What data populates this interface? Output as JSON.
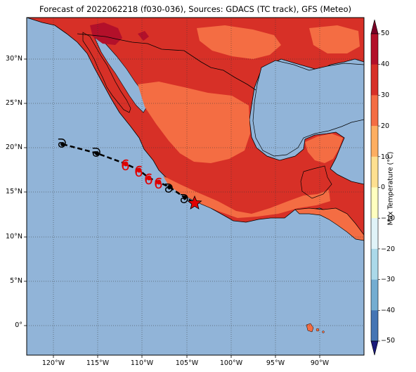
{
  "title": "Forecast of 2022062218 (f030-036), Sources: GDACS (TC track), GFS (Meteo)",
  "y_ticks": [
    "30°N",
    "25°N",
    "20°N",
    "15°N",
    "10°N",
    "5°N",
    "0°"
  ],
  "x_ticks": [
    "120°W",
    "115°W",
    "110°W",
    "105°W",
    "100°W",
    "95°W",
    "90°W"
  ],
  "colorbar": {
    "label": "Max Temperature (°C)",
    "ticks": [
      "50",
      "40",
      "30",
      "20",
      "10",
      "0",
      "−10",
      "−20",
      "−30",
      "−40",
      "−50"
    ],
    "colors": [
      "#7a0026",
      "#b3102a",
      "#d73027",
      "#f46d43",
      "#fdae61",
      "#fee090",
      "#ffffbf",
      "#e0f3f8",
      "#abd9e9",
      "#74add1",
      "#4575b4",
      "#313695",
      "#1a1a7a"
    ]
  },
  "map": {
    "ocean_color": "#91b4d8",
    "land_color": "#d73027",
    "warm_color": "#f46d43",
    "hot_color": "#b3102a"
  },
  "storm_track": {
    "past_color": "#000000",
    "forecast_color": "#e00000",
    "current_marker": "red-star"
  }
}
